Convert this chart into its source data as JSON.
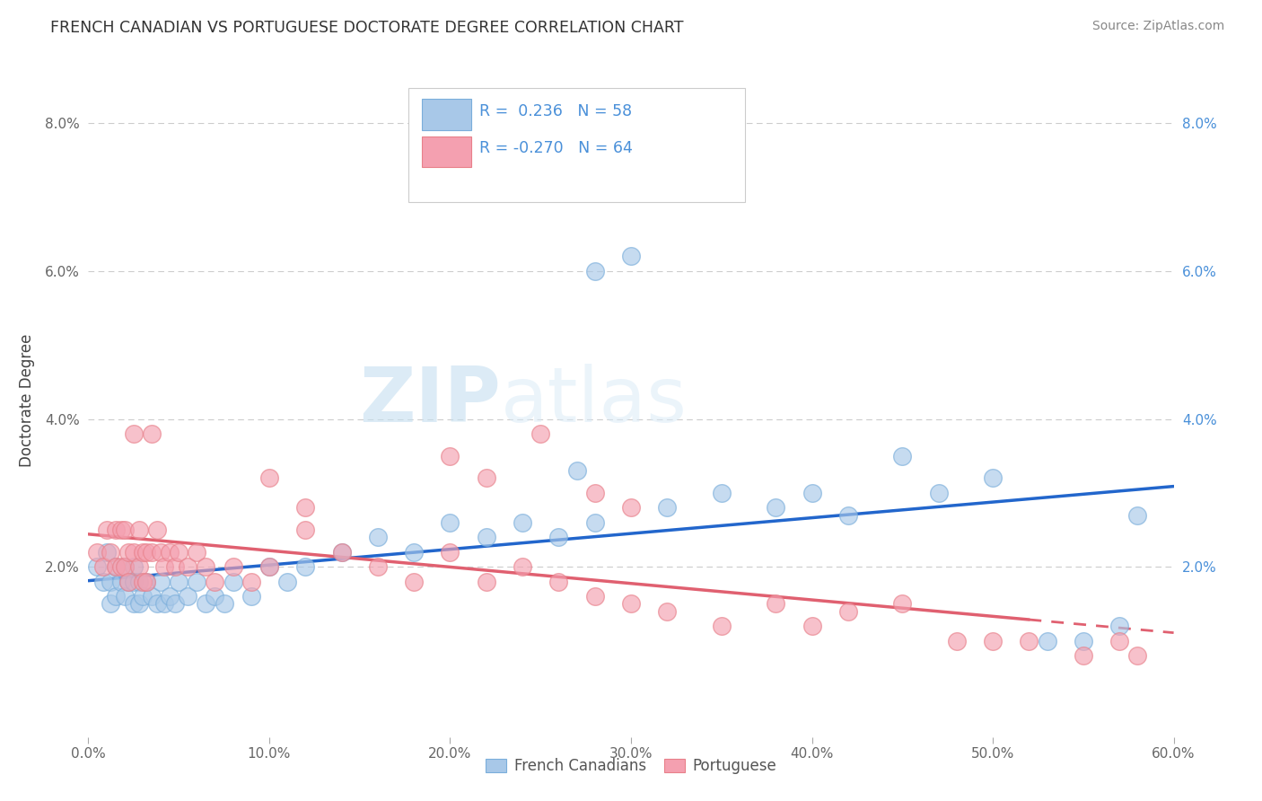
{
  "title": "FRENCH CANADIAN VS PORTUGUESE DOCTORATE DEGREE CORRELATION CHART",
  "source": "Source: ZipAtlas.com",
  "ylabel": "Doctorate Degree",
  "xlim": [
    0,
    0.6
  ],
  "ylim": [
    -0.003,
    0.088
  ],
  "xtick_labels": [
    "0.0%",
    "10.0%",
    "20.0%",
    "30.0%",
    "40.0%",
    "50.0%",
    "60.0%"
  ],
  "xtick_vals": [
    0,
    0.1,
    0.2,
    0.3,
    0.4,
    0.5,
    0.6
  ],
  "ytick_labels": [
    "2.0%",
    "4.0%",
    "6.0%",
    "8.0%"
  ],
  "ytick_vals": [
    0.02,
    0.04,
    0.06,
    0.08
  ],
  "legend_labels": [
    "French Canadians",
    "Portuguese"
  ],
  "blue_color": "#a8c8e8",
  "pink_color": "#f4a0b0",
  "blue_edge_color": "#7aaedb",
  "pink_edge_color": "#e8808a",
  "blue_line_color": "#2266cc",
  "pink_line_color": "#e06070",
  "watermark_zip": "ZIP",
  "watermark_atlas": "atlas",
  "title_color": "#333333",
  "source_color": "#888888",
  "legend_text_color": "#4a90d9",
  "blue_scatter_x": [
    0.005,
    0.008,
    0.01,
    0.012,
    0.012,
    0.015,
    0.015,
    0.018,
    0.02,
    0.02,
    0.022,
    0.025,
    0.025,
    0.025,
    0.028,
    0.028,
    0.03,
    0.032,
    0.035,
    0.038,
    0.04,
    0.042,
    0.045,
    0.048,
    0.05,
    0.055,
    0.06,
    0.065,
    0.07,
    0.075,
    0.08,
    0.09,
    0.1,
    0.11,
    0.12,
    0.14,
    0.16,
    0.18,
    0.2,
    0.22,
    0.24,
    0.26,
    0.28,
    0.28,
    0.3,
    0.32,
    0.35,
    0.38,
    0.4,
    0.42,
    0.45,
    0.47,
    0.5,
    0.53,
    0.55,
    0.57,
    0.58,
    0.27
  ],
  "blue_scatter_y": [
    0.02,
    0.018,
    0.022,
    0.018,
    0.015,
    0.02,
    0.016,
    0.018,
    0.02,
    0.016,
    0.018,
    0.02,
    0.018,
    0.015,
    0.018,
    0.015,
    0.016,
    0.018,
    0.016,
    0.015,
    0.018,
    0.015,
    0.016,
    0.015,
    0.018,
    0.016,
    0.018,
    0.015,
    0.016,
    0.015,
    0.018,
    0.016,
    0.02,
    0.018,
    0.02,
    0.022,
    0.024,
    0.022,
    0.026,
    0.024,
    0.026,
    0.024,
    0.06,
    0.026,
    0.062,
    0.028,
    0.03,
    0.028,
    0.03,
    0.027,
    0.035,
    0.03,
    0.032,
    0.01,
    0.01,
    0.012,
    0.027,
    0.033
  ],
  "pink_scatter_x": [
    0.005,
    0.008,
    0.01,
    0.012,
    0.015,
    0.015,
    0.018,
    0.018,
    0.02,
    0.02,
    0.022,
    0.022,
    0.025,
    0.025,
    0.028,
    0.028,
    0.03,
    0.03,
    0.032,
    0.032,
    0.035,
    0.035,
    0.038,
    0.04,
    0.042,
    0.045,
    0.048,
    0.05,
    0.055,
    0.06,
    0.065,
    0.07,
    0.08,
    0.09,
    0.1,
    0.12,
    0.14,
    0.16,
    0.18,
    0.2,
    0.22,
    0.24,
    0.26,
    0.28,
    0.3,
    0.32,
    0.35,
    0.38,
    0.4,
    0.42,
    0.45,
    0.48,
    0.5,
    0.52,
    0.55,
    0.57,
    0.58,
    0.2,
    0.22,
    0.25,
    0.28,
    0.3,
    0.1,
    0.12
  ],
  "pink_scatter_y": [
    0.022,
    0.02,
    0.025,
    0.022,
    0.025,
    0.02,
    0.025,
    0.02,
    0.025,
    0.02,
    0.022,
    0.018,
    0.038,
    0.022,
    0.025,
    0.02,
    0.022,
    0.018,
    0.022,
    0.018,
    0.038,
    0.022,
    0.025,
    0.022,
    0.02,
    0.022,
    0.02,
    0.022,
    0.02,
    0.022,
    0.02,
    0.018,
    0.02,
    0.018,
    0.02,
    0.025,
    0.022,
    0.02,
    0.018,
    0.022,
    0.018,
    0.02,
    0.018,
    0.016,
    0.015,
    0.014,
    0.012,
    0.015,
    0.012,
    0.014,
    0.015,
    0.01,
    0.01,
    0.01,
    0.008,
    0.01,
    0.008,
    0.035,
    0.032,
    0.038,
    0.03,
    0.028,
    0.032,
    0.028
  ]
}
